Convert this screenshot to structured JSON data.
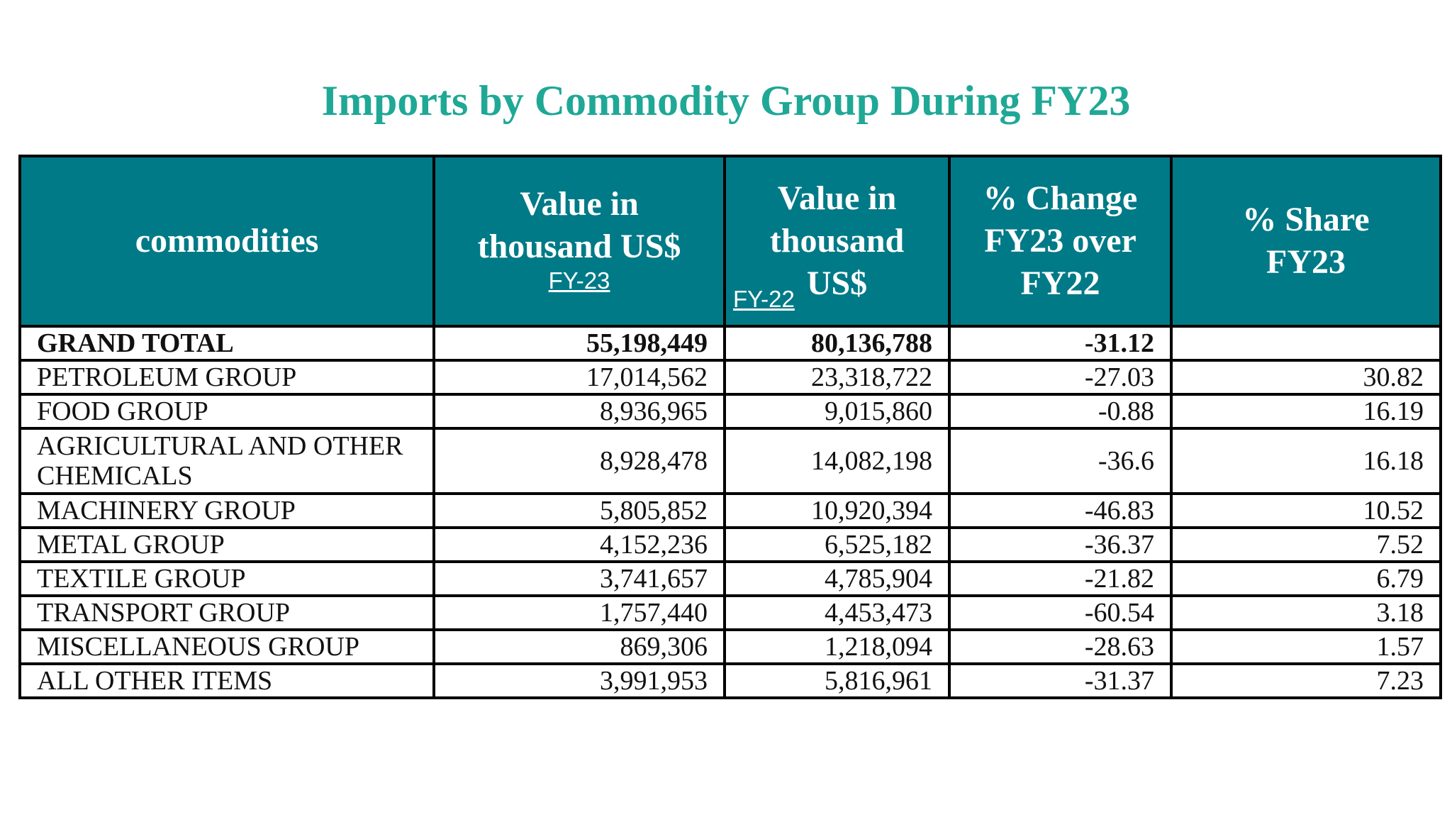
{
  "chart_data": {
    "type": "table",
    "title": "Imports by Commodity Group During FY23",
    "columns": [
      {
        "label": "commodities",
        "sub": ""
      },
      {
        "label": "Value in thousand US$",
        "sub": "FY-23"
      },
      {
        "label": "Value in thousand US$",
        "sub": "FY-22"
      },
      {
        "label": "% Change FY23 over FY22",
        "sub": ""
      },
      {
        "label": "% Share FY23",
        "sub": ""
      }
    ],
    "rows": [
      {
        "name": "GRAND TOTAL",
        "fy23": "55,198,449",
        "fy22": "80,136,788",
        "change": "-31.12",
        "share": ""
      },
      {
        "name": "PETROLEUM GROUP",
        "fy23": "17,014,562",
        "fy22": "23,318,722",
        "change": "-27.03",
        "share": "30.82"
      },
      {
        "name": "FOOD GROUP",
        "fy23": "8,936,965",
        "fy22": "9,015,860",
        "change": "-0.88",
        "share": "16.19"
      },
      {
        "name": "AGRICULTURAL AND OTHER CHEMICALS",
        "fy23": "8,928,478",
        "fy22": "14,082,198",
        "change": "-36.6",
        "share": "16.18"
      },
      {
        "name": "MACHINERY GROUP",
        "fy23": "5,805,852",
        "fy22": "10,920,394",
        "change": "-46.83",
        "share": "10.52"
      },
      {
        "name": "METAL GROUP",
        "fy23": "4,152,236",
        "fy22": "6,525,182",
        "change": "-36.37",
        "share": "7.52"
      },
      {
        "name": "TEXTILE GROUP",
        "fy23": "3,741,657",
        "fy22": "4,785,904",
        "change": "-21.82",
        "share": "6.79"
      },
      {
        "name": "TRANSPORT GROUP",
        "fy23": "1,757,440",
        "fy22": "4,453,473",
        "change": "-60.54",
        "share": "3.18"
      },
      {
        "name": "MISCELLANEOUS GROUP",
        "fy23": "869,306",
        "fy22": "1,218,094",
        "change": "-28.63",
        "share": "1.57"
      },
      {
        "name": "ALL OTHER ITEMS",
        "fy23": "3,991,953",
        "fy22": "5,816,961",
        "change": "-31.37",
        "share": "7.23"
      }
    ],
    "colors": {
      "title": "#1fa896",
      "header_bg": "#007a87",
      "header_text": "#ffffff",
      "border": "#000000"
    }
  }
}
